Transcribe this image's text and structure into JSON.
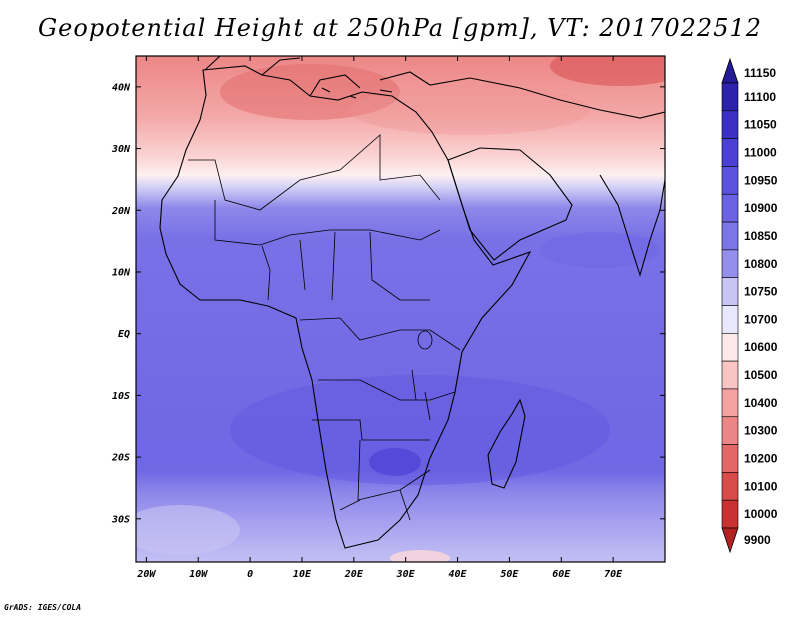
{
  "title": "Geopotential Height at 250hPa [gpm], VT: 2017022512",
  "credit": "GrADS: IGES/COLA",
  "map": {
    "lon_range": [
      -22,
      80
    ],
    "lat_range": [
      -37,
      45
    ],
    "x_ticks": [
      "20W",
      "10W",
      "0",
      "10E",
      "20E",
      "30E",
      "40E",
      "50E",
      "60E",
      "70E"
    ],
    "y_ticks": [
      "40N",
      "30N",
      "20N",
      "10N",
      "EQ",
      "10S",
      "20S",
      "30S"
    ]
  },
  "colorbar": {
    "levels": [
      "11150",
      "11100",
      "11050",
      "11000",
      "10950",
      "10900",
      "10850",
      "10800",
      "10750",
      "10700",
      "10600",
      "10500",
      "10400",
      "10300",
      "10200",
      "10100",
      "10000",
      "9900"
    ],
    "colors": [
      "#241a96",
      "#2d23aa",
      "#3a30c4",
      "#4a40d4",
      "#5b52de",
      "#6b63e3",
      "#7c75e7",
      "#948eec",
      "#c8c5f4",
      "#e8e7fb",
      "#fce9e9",
      "#f8c4c4",
      "#f3a2a2",
      "#ec8585",
      "#e26868",
      "#d84b4b",
      "#c83232",
      "#b22222"
    ]
  }
}
